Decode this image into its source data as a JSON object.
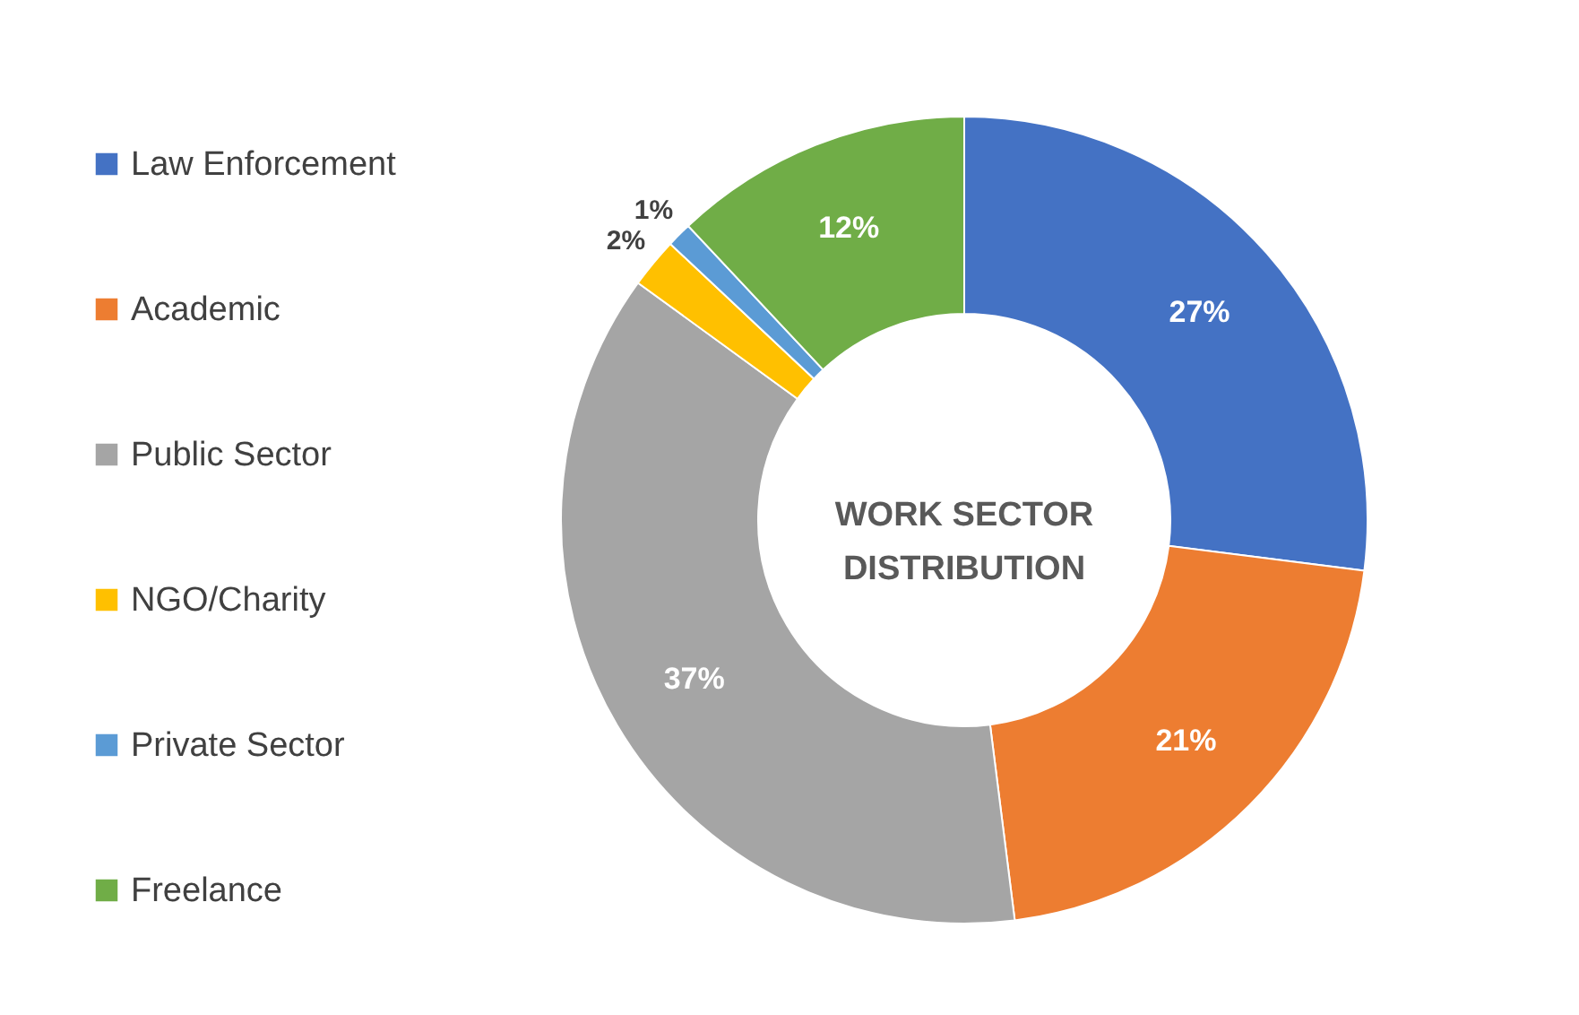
{
  "chart_data": {
    "type": "donut",
    "title": "WORK SECTOR DISTRIBUTION",
    "categories": [
      "Law Enforcement",
      "Academic",
      "Public Sector",
      "NGO/Charity",
      "Private Sector",
      "Freelance"
    ],
    "values": [
      27,
      21,
      37,
      2,
      1,
      12
    ],
    "colors": [
      "#4472c4",
      "#ed7d31",
      "#a5a5a5",
      "#ffc000",
      "#5b9bd5",
      "#70ad47"
    ],
    "value_labels": [
      "27%",
      "21%",
      "37%",
      "2%",
      "1%",
      "12%"
    ],
    "legend": "left"
  }
}
